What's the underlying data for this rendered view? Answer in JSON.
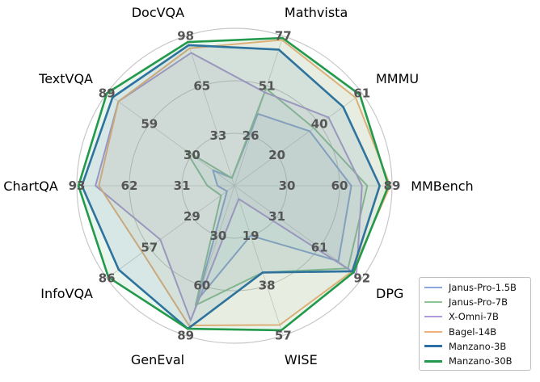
{
  "chart_data": {
    "type": "radar",
    "axes": [
      {
        "name": "Mathvista",
        "ticks": [
          "26",
          "51",
          "77"
        ],
        "max": 77
      },
      {
        "name": "MMMU",
        "ticks": [
          "20",
          "40",
          "61"
        ],
        "max": 61
      },
      {
        "name": "MMBench",
        "ticks": [
          "30",
          "60",
          "89"
        ],
        "max": 89
      },
      {
        "name": "DPG",
        "ticks": [
          "31",
          "61",
          "92"
        ],
        "max": 92
      },
      {
        "name": "WISE",
        "ticks": [
          "19",
          "38",
          "57"
        ],
        "max": 57
      },
      {
        "name": "GenEval",
        "ticks": [
          "30",
          "60",
          "89"
        ],
        "max": 89
      },
      {
        "name": "InfoVQA",
        "ticks": [
          "29",
          "57",
          "86"
        ],
        "max": 86
      },
      {
        "name": "ChartQA",
        "ticks": [
          "31",
          "62",
          "93"
        ],
        "max": 93
      },
      {
        "name": "TextVQA",
        "ticks": [
          "30",
          "59",
          "89"
        ],
        "max": 89
      },
      {
        "name": "DocVQA",
        "ticks": [
          "33",
          "65",
          "98"
        ],
        "max": 98
      }
    ],
    "series": [
      {
        "name": "Janus-Pro-1.5B",
        "color": "#8ea6de",
        "fill_opacity": 0.08,
        "values": [
          37,
          36,
          66,
          75,
          19,
          68,
          5,
          10,
          15,
          5
        ]
      },
      {
        "name": "Janus-Pro-7B",
        "color": "#8fc398",
        "fill_opacity": 0.08,
        "values": [
          50,
          38,
          75,
          82,
          33,
          71,
          9,
          16,
          34,
          5
        ]
      },
      {
        "name": "X-Omni-7B",
        "color": "#b09ad9",
        "fill_opacity": 0.08,
        "values": [
          48,
          45,
          72,
          88,
          5,
          80,
          50,
          82,
          81,
          87
        ]
      },
      {
        "name": "Bagel-14B",
        "color": "#f0b27c",
        "fill_opacity": 0.1,
        "values": [
          75,
          58,
          88,
          85,
          53,
          83,
          62,
          80,
          81,
          90
        ]
      },
      {
        "name": "Manzano-3B",
        "color": "#2f6fa8",
        "fill_opacity": 0.1,
        "values": [
          70,
          52,
          82,
          85,
          33,
          85,
          78,
          90,
          85,
          92
        ]
      },
      {
        "name": "Manzano-30B",
        "color": "#239a4b",
        "fill_opacity": 0.1,
        "values": [
          76,
          60,
          87,
          86,
          55,
          85,
          85,
          92,
          89,
          94
        ]
      }
    ],
    "grid": true,
    "legend_position": "bottom-right"
  }
}
